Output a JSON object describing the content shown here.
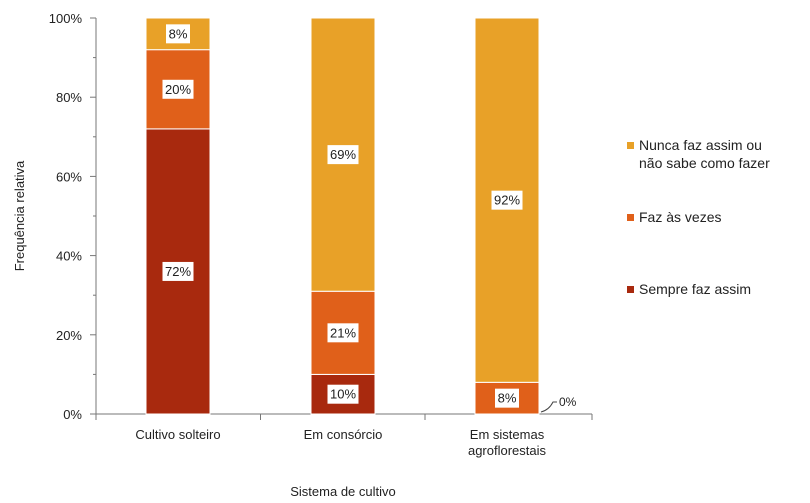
{
  "chart_data": {
    "type": "bar",
    "stacked": true,
    "percent": true,
    "categories": [
      [
        "Cultivo solteiro"
      ],
      [
        "Em consórcio"
      ],
      [
        "Em sistemas",
        "agroflorestais"
      ]
    ],
    "series": [
      {
        "name": "Sempre faz assim",
        "color": "#a8290e",
        "values": [
          72,
          10,
          0
        ],
        "labels": [
          "72%",
          "10%",
          ""
        ]
      },
      {
        "name": "Faz às vezes",
        "color": "#e0601a",
        "values": [
          20,
          21,
          8
        ],
        "labels": [
          "20%",
          "21%",
          "8%"
        ]
      },
      {
        "name": "Nunca faz assim ou\nnão sabe como fazer",
        "color": "#e8a128",
        "values": [
          8,
          69,
          92
        ],
        "labels": [
          "8%",
          "69%",
          "92%"
        ]
      }
    ],
    "legend_order": [
      2,
      1,
      0
    ],
    "callout": {
      "category": 2,
      "series": 0,
      "text": "0%"
    },
    "xlabel": "Sistema de cultivo",
    "ylabel": "Frequência relativa",
    "ylim": [
      0,
      100
    ],
    "yticks": [
      "0%",
      "20%",
      "40%",
      "60%",
      "80%",
      "100%"
    ],
    "legend_position": "right",
    "grid": false
  }
}
